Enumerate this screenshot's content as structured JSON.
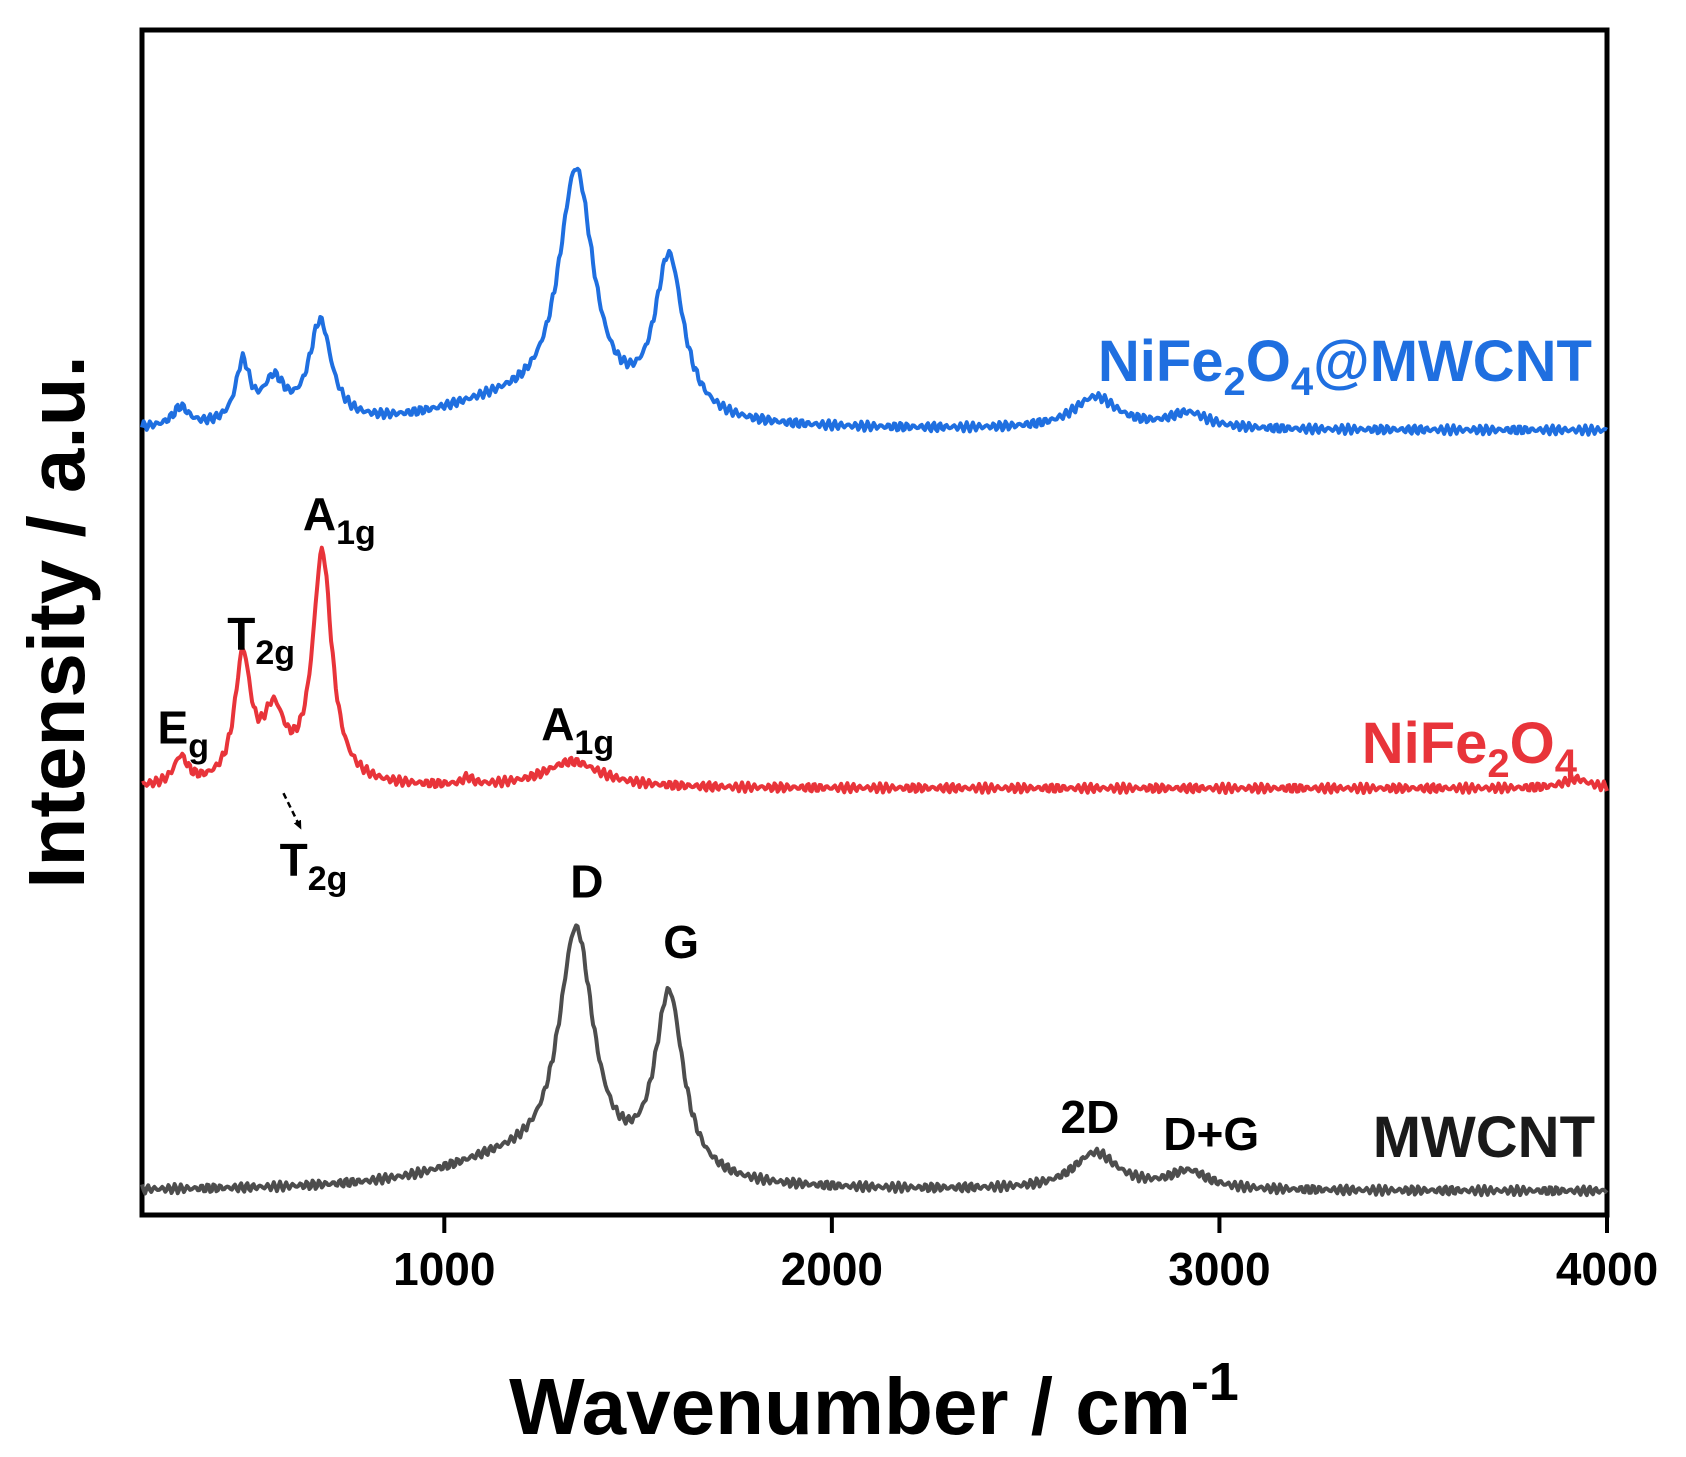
{
  "chart_data": {
    "type": "line",
    "title": "",
    "xlabel": "Wavenumber / cm",
    "xlabel_superscript": "-1",
    "ylabel": "Intensity / a.u.",
    "xlim": [
      220,
      4000
    ],
    "ylim": [
      0,
      100
    ],
    "grid": false,
    "x_ticks": [
      1000,
      2000,
      3000,
      4000
    ],
    "x_tick_labels": [
      "1000",
      "2000",
      "3000",
      "4000"
    ],
    "series": [
      {
        "name": "NiFe2O4@MWCNT",
        "label_main": "NiFe",
        "label_sub1": "2",
        "label_mid": "O",
        "label_sub2": "4",
        "label_tail": "@MWCNT",
        "color": "#1f6fe0",
        "baseline": 66.2,
        "peaks": [
          {
            "center": 320,
            "height": 1.6,
            "width": 25
          },
          {
            "center": 480,
            "height": 5.0,
            "width": 22
          },
          {
            "center": 560,
            "height": 3.4,
            "width": 35
          },
          {
            "center": 680,
            "height": 8.5,
            "width": 35
          },
          {
            "center": 1150,
            "height": 2.0,
            "width": 220
          },
          {
            "center": 1340,
            "height": 20.5,
            "width": 55
          },
          {
            "center": 1580,
            "height": 13.5,
            "width": 45
          },
          {
            "center": 2680,
            "height": 2.7,
            "width": 70
          },
          {
            "center": 2920,
            "height": 1.3,
            "width": 60
          }
        ]
      },
      {
        "name": "NiFe2O4",
        "label_main": "NiFe",
        "label_sub1": "2",
        "label_mid": "O",
        "label_sub2": "4",
        "label_tail": "",
        "color": "#e8343a",
        "baseline": 36.0,
        "peaks": [
          {
            "center": 320,
            "height": 2.3,
            "width": 22
          },
          {
            "center": 480,
            "height": 10.4,
            "width": 25
          },
          {
            "center": 560,
            "height": 5.5,
            "width": 35
          },
          {
            "center": 685,
            "height": 19.5,
            "width": 30
          },
          {
            "center": 1060,
            "height": 0.6,
            "width": 15
          },
          {
            "center": 1330,
            "height": 2.2,
            "width": 90
          },
          {
            "center": 3920,
            "height": 0.8,
            "width": 40
          }
        ]
      },
      {
        "name": "MWCNT",
        "label_main": "MWCNT",
        "label_sub1": "",
        "label_mid": "",
        "label_sub2": "",
        "label_tail": "",
        "color": "#4d4d4d",
        "baseline": 2.0,
        "peaks": [
          {
            "center": 1150,
            "height": 2.2,
            "width": 220
          },
          {
            "center": 1340,
            "height": 20.5,
            "width": 55
          },
          {
            "center": 1580,
            "height": 15.5,
            "width": 45
          },
          {
            "center": 2680,
            "height": 3.1,
            "width": 70
          },
          {
            "center": 2920,
            "height": 1.5,
            "width": 60
          }
        ]
      }
    ],
    "annotations": [
      {
        "id": "eg",
        "main": "E",
        "sub": "g",
        "x": 260,
        "y": 39.8,
        "anchor": "start"
      },
      {
        "id": "t2g-upper",
        "main": "T",
        "sub": "2g",
        "x": 440,
        "y": 47.7,
        "anchor": "start"
      },
      {
        "id": "a1g-upper",
        "main": "A",
        "sub": "1g",
        "x": 635,
        "y": 57.8,
        "anchor": "start"
      },
      {
        "id": "t2g-lower",
        "main": "T",
        "sub": "2g",
        "x": 575,
        "y": 28.6,
        "anchor": "start"
      },
      {
        "id": "a1g-lower",
        "main": "A",
        "sub": "1g",
        "x": 1250,
        "y": 40.1,
        "anchor": "start"
      },
      {
        "id": "d",
        "main": "D",
        "sub": "",
        "x": 1325,
        "y": 26.8,
        "anchor": "start"
      },
      {
        "id": "g",
        "main": "G",
        "sub": "",
        "x": 1565,
        "y": 21.7,
        "anchor": "start"
      },
      {
        "id": "2d",
        "main": "2D",
        "sub": "",
        "x": 2590,
        "y": 6.9,
        "anchor": "start"
      },
      {
        "id": "dg",
        "main": "D+G",
        "sub": "",
        "x": 2855,
        "y": 5.5,
        "anchor": "start"
      }
    ],
    "arrow": {
      "from_x": 585,
      "from_y": 35.6,
      "to_x": 630,
      "to_y": 32.6
    }
  }
}
